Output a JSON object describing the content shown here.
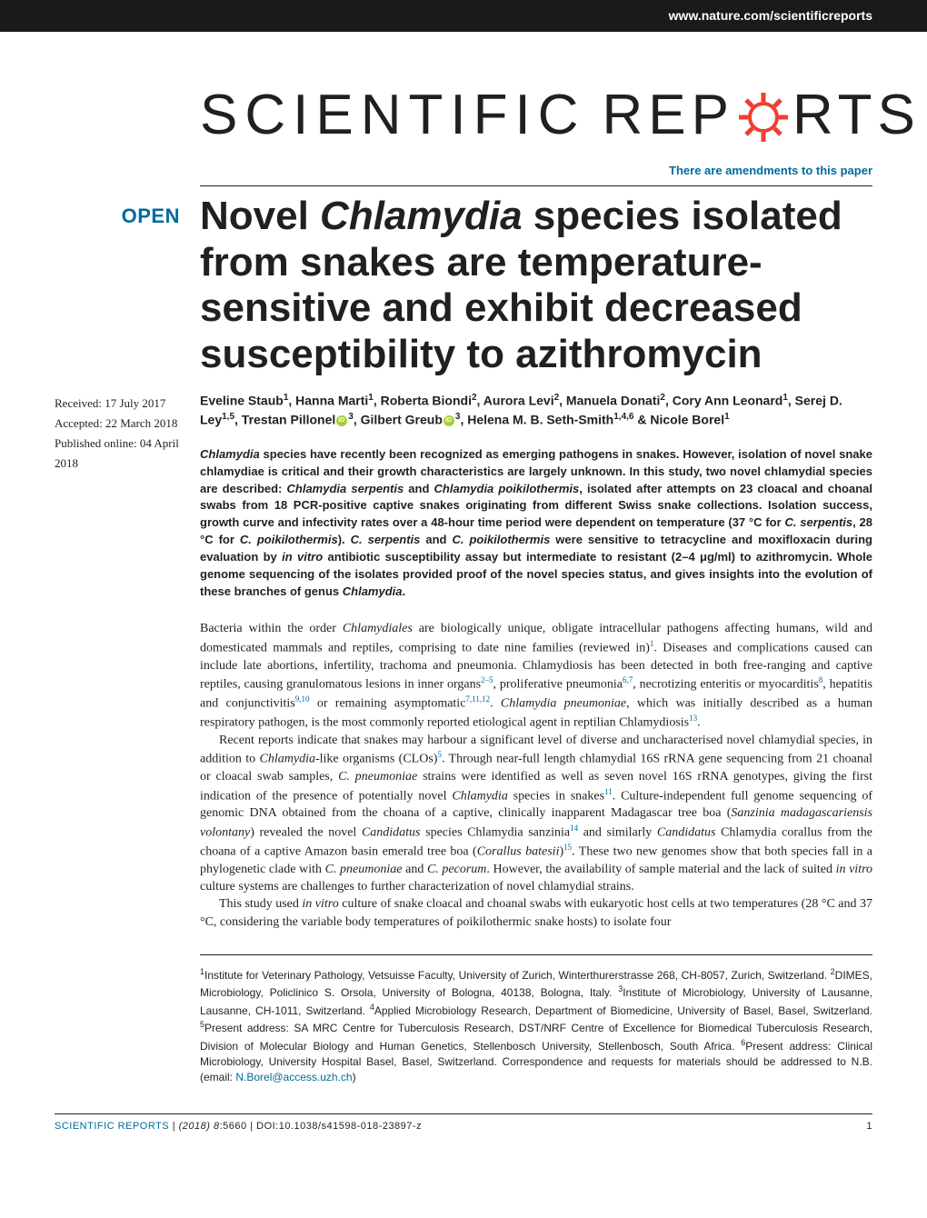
{
  "header": {
    "url": "www.nature.com/scientificreports"
  },
  "journal_logo": {
    "word1": "SCIENTIFIC",
    "word2": "REP",
    "word3": "RTS",
    "gear_color": "#ef3e33"
  },
  "amendments_link": "There are amendments to this paper",
  "open_badge": "OPEN",
  "dates": {
    "received": "Received: 17 July 2017",
    "accepted": "Accepted: 22 March 2018",
    "published": "Published online: 04 April 2018"
  },
  "title": {
    "line1_pre": "Novel ",
    "line1_italic": "Chlamydia",
    "line1_post": " species isolated from snakes are temperature-sensitive and exhibit decreased susceptibility to azithromycin"
  },
  "authors_html": "Eveline Staub<sup>1</sup>, Hanna Marti<sup>1</sup>, Roberta Biondi<sup>2</sup>, Aurora Levi<sup>2</sup>, Manuela Donati<sup>2</sup>, Cory Ann Leonard<sup>1</sup>, Serej D. Ley<sup>1,5</sup>, Trestan Pillonel<span class=\"orcid\"></span><sup>3</sup>, Gilbert Greub<span class=\"orcid\"></span><sup>3</sup>, Helena M. B. Seth-Smith<sup>1,4,6</sup> & Nicole Borel<sup>1</sup>",
  "abstract": "<span class=\"italic\">Chlamydia</span> species have recently been recognized as emerging pathogens in snakes. However, isolation of novel snake chlamydiae is critical and their growth characteristics are largely unknown. In this study, two novel chlamydial species are described: <span class=\"italic\">Chlamydia serpentis</span> and <span class=\"italic\">Chlamydia poikilothermis</span>, isolated after attempts on 23 cloacal and choanal swabs from 18 PCR-positive captive snakes originating from different Swiss snake collections. Isolation success, growth curve and infectivity rates over a 48-hour time period were dependent on temperature (37 °C for <span class=\"italic\">C. serpentis</span>, 28 °C for <span class=\"italic\">C. poikilothermis</span>). <span class=\"italic\">C. serpentis</span> and <span class=\"italic\">C. poikilothermis</span> were sensitive to tetracycline and moxifloxacin during evaluation by <span class=\"italic\">in vitro</span> antibiotic susceptibility assay but intermediate to resistant (2–4 μg/ml) to azithromycin. Whole genome sequencing of the isolates provided proof of the novel species status, and gives insights into the evolution of these branches of genus <span class=\"italic\">Chlamydia</span>.",
  "body": {
    "p1": "Bacteria within the order <span class=\"italic\">Chlamydiales</span> are biologically unique, obligate intracellular pathogens affecting humans, wild and domesticated mammals and reptiles, comprising to date nine families (reviewed in)<sup>1</sup>. Diseases and complications caused can include late abortions, infertility, trachoma and pneumonia. Chlamydiosis has been detected in both free-ranging and captive reptiles, causing granulomatous lesions in inner organs<sup>2–5</sup>, proliferative pneumonia<sup>6,7</sup>, necrotizing enteritis or myocarditis<sup>8</sup>, hepatitis and conjunctivitis<sup>9,10</sup> or remaining asymptomatic<sup>7,11,12</sup>. <span class=\"italic\">Chlamydia pneumoniae</span>, which was initially described as a human respiratory pathogen, is the most commonly reported etiological agent in reptilian Chlamydiosis<sup>13</sup>.",
    "p2": "Recent reports indicate that snakes may harbour a significant level of diverse and uncharacterised novel chlamydial species, in addition to <span class=\"italic\">Chlamydia</span>-like organisms (CLOs)<sup>5</sup>. Through near-full length chlamydial 16S rRNA gene sequencing from 21 choanal or cloacal swab samples, <span class=\"italic\">C. pneumoniae</span> strains were identified as well as seven novel 16S rRNA genotypes, giving the first indication of the presence of potentially novel <span class=\"italic\">Chlamydia</span> species in snakes<sup>11</sup>. Culture-independent full genome sequencing of genomic DNA obtained from the choana of a captive, clinically inapparent Madagascar tree boa (<span class=\"italic\">Sanzinia madagascariensis volontany</span>) revealed the novel <span class=\"italic\">Candidatus</span> species Chlamydia sanzinia<sup>14</sup> and similarly <span class=\"italic\">Candidatus</span> Chlamydia corallus from the choana of a captive Amazon basin emerald tree boa (<span class=\"italic\">Corallus batesii</span>)<sup>15</sup>. These two new genomes show that both species fall in a phylogenetic clade with <span class=\"italic\">C. pneumoniae</span> and <span class=\"italic\">C. pecorum</span>. However, the availability of sample material and the lack of suited <span class=\"italic\">in vitro</span> culture systems are challenges to further characterization of novel chlamydial strains.",
    "p3": "This study used <span class=\"italic\">in vitro</span> culture of snake cloacal and choanal swabs with eukaryotic host cells at two temperatures (28 °C and 37 °C, considering the variable body temperatures of poikilothermic snake hosts) to isolate four"
  },
  "affiliations": "<sup>1</sup>Institute for Veterinary Pathology, Vetsuisse Faculty, University of Zurich, Winterthurerstrasse 268, CH-8057, Zurich, Switzerland. <sup>2</sup>DIMES, Microbiology, Policlinico S. Orsola, University of Bologna, 40138, Bologna, Italy. <sup>3</sup>Institute of Microbiology, University of Lausanne, Lausanne, CH-1011, Switzerland. <sup>4</sup>Applied Microbiology Research, Department of Biomedicine, University of Basel, Basel, Switzerland. <sup>5</sup>Present address: SA MRC Centre for Tuberculosis Research, DST/NRF Centre of Excellence for Biomedical Tuberculosis Research, Division of Molecular Biology and Human Genetics, Stellenbosch University, Stellenbosch, South Africa. <sup>6</sup>Present address: Clinical Microbiology, University Hospital Basel, Basel, Switzerland. Correspondence and requests for materials should be addressed to N.B. (email: <span class=\"email\">N.Borel@access.uzh.ch</span>)",
  "footer": {
    "journal": "SCIENTIFIC REPORTS",
    "citation": " | <span class=\"italic\">(2018) 8</span>:5660 | DOI:10.1038/s41598-018-23897-z",
    "page": "1"
  },
  "colors": {
    "accent_blue": "#006b9e",
    "header_bg": "#1a1a1a",
    "text": "#231f20",
    "gear": "#ef3e33",
    "orcid_green": "#a6ce39"
  }
}
